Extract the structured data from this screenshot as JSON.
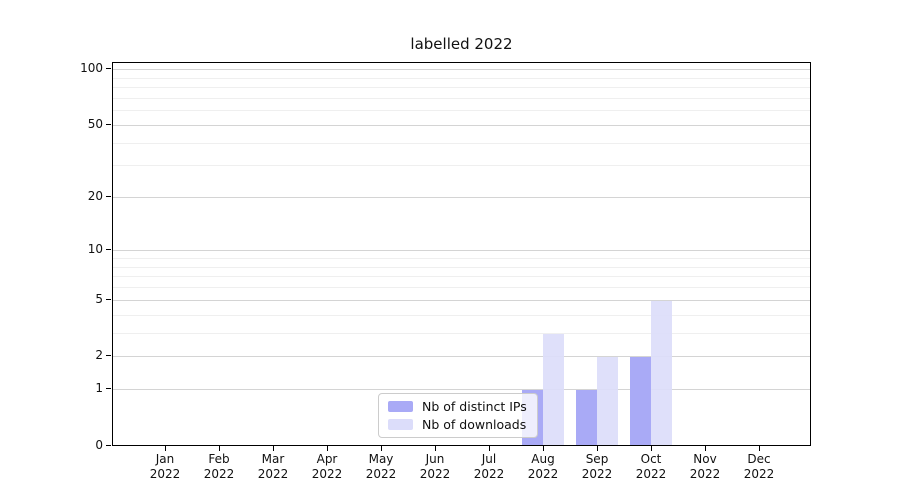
{
  "chart_data": {
    "type": "bar",
    "title": "labelled 2022",
    "yscale": "log1p",
    "grid": true,
    "legend_position": "lower center",
    "categories": [
      "Jan",
      "Feb",
      "Mar",
      "Apr",
      "May",
      "Jun",
      "Jul",
      "Aug",
      "Sep",
      "Oct",
      "Nov",
      "Dec"
    ],
    "year_label": "2022",
    "series": [
      {
        "name": "Nb of distinct IPs",
        "color": "#a9aaf6",
        "values": [
          0,
          0,
          0,
          0,
          0,
          0,
          0,
          1,
          1,
          2,
          0,
          0
        ]
      },
      {
        "name": "Nb of downloads",
        "color": "#dcddfa",
        "values": [
          0,
          0,
          0,
          0,
          0,
          0,
          0,
          3,
          2,
          5,
          0,
          0
        ]
      }
    ],
    "y_major_ticks": [
      0,
      1,
      2,
      5,
      10,
      20,
      50,
      100
    ],
    "y_minor_ticks": [
      3,
      4,
      6,
      7,
      8,
      9,
      30,
      40,
      60,
      70,
      80,
      90
    ],
    "ylim": [
      0,
      110
    ],
    "xlabel": "",
    "ylabel": ""
  }
}
